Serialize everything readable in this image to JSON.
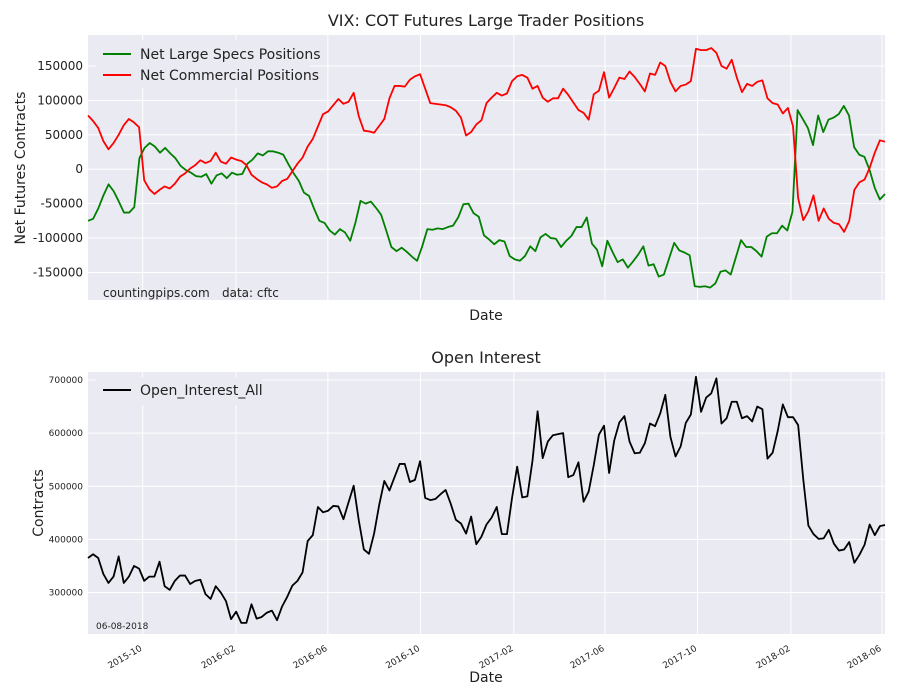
{
  "chart_data": [
    {
      "type": "line",
      "title": "VIX: COT Futures Large Trader Positions",
      "xlabel": "Date",
      "ylabel": "Net Futures Contracts",
      "ylim": [
        -190000,
        195000
      ],
      "yticks": [
        -150000,
        -100000,
        -50000,
        0,
        50000,
        100000,
        150000
      ],
      "x_start": "2015-07-21",
      "x_end": "2018-06-05",
      "source_note": "countingpips.com",
      "data_note": "data: cftc",
      "series": [
        {
          "name": "Net Large Specs Positions",
          "color": "#008000",
          "values": [
            -75000,
            -72000,
            -57000,
            -38000,
            -22000,
            -32000,
            -47000,
            -63000,
            -63000,
            -55000,
            16000,
            31000,
            38000,
            33000,
            24000,
            31000,
            23000,
            16000,
            5000,
            -1000,
            -5000,
            -10000,
            -11000,
            -7000,
            -21000,
            -9000,
            -6000,
            -13000,
            -5000,
            -8000,
            -7000,
            8000,
            14000,
            23000,
            20000,
            26000,
            26000,
            24000,
            21000,
            7000,
            -6000,
            -17000,
            -34000,
            -39000,
            -58000,
            -75000,
            -78000,
            -89000,
            -95000,
            -87000,
            -92000,
            -104000,
            -78000,
            -46000,
            -50000,
            -47000,
            -56000,
            -66000,
            -89000,
            -113000,
            -119000,
            -114000,
            -120000,
            -127000,
            -133000,
            -112000,
            -87000,
            -88000,
            -86000,
            -87000,
            -84000,
            -82000,
            -70000,
            -51000,
            -50000,
            -64000,
            -69000,
            -96000,
            -102000,
            -109000,
            -103000,
            -105000,
            -126000,
            -131000,
            -133000,
            -126000,
            -112000,
            -119000,
            -99000,
            -94000,
            -100000,
            -101000,
            -113000,
            -104000,
            -97000,
            -84000,
            -84000,
            -70000,
            -108000,
            -117000,
            -141000,
            -104000,
            -120000,
            -135000,
            -131000,
            -143000,
            -134000,
            -124000,
            -112000,
            -140000,
            -138000,
            -156000,
            -153000,
            -130000,
            -107000,
            -118000,
            -121000,
            -125000,
            -170000,
            -171000,
            -170000,
            -172000,
            -166000,
            -149000,
            -147000,
            -153000,
            -128000,
            -103000,
            -113000,
            -113000,
            -119000,
            -127000,
            -98000,
            -93000,
            -93000,
            -82000,
            -89000,
            -62000,
            86000,
            73000,
            60000,
            35000,
            78000,
            54000,
            72000,
            75000,
            80000,
            92000,
            78000,
            32000,
            21000,
            18000,
            -1000,
            -27000,
            -44000,
            -36000
          ]
        },
        {
          "name": "Net Commercial Positions",
          "color": "#ff0000",
          "values": [
            78000,
            70000,
            60000,
            41000,
            29000,
            38000,
            50000,
            64000,
            73000,
            68000,
            61000,
            -16000,
            -29000,
            -36000,
            -30000,
            -25000,
            -28000,
            -21000,
            -11000,
            -6000,
            1000,
            6000,
            13000,
            9000,
            12000,
            24000,
            11000,
            8000,
            17000,
            14000,
            12000,
            6000,
            -8000,
            -14000,
            -19000,
            -22000,
            -27000,
            -25000,
            -17000,
            -14000,
            -3000,
            8000,
            17000,
            33000,
            44000,
            62000,
            80000,
            84000,
            93000,
            102000,
            95000,
            98000,
            111000,
            77000,
            56000,
            55000,
            53000,
            63000,
            73000,
            103000,
            121000,
            121000,
            120000,
            130000,
            135000,
            138000,
            117000,
            96000,
            95000,
            94000,
            93000,
            90000,
            85000,
            75000,
            49000,
            54000,
            65000,
            71000,
            96000,
            104000,
            111000,
            107000,
            110000,
            128000,
            135000,
            137000,
            133000,
            117000,
            121000,
            104000,
            98000,
            103000,
            103000,
            117000,
            108000,
            97000,
            86000,
            82000,
            72000,
            109000,
            114000,
            141000,
            104000,
            118000,
            133000,
            131000,
            142000,
            134000,
            124000,
            113000,
            139000,
            137000,
            155000,
            150000,
            127000,
            113000,
            121000,
            123000,
            128000,
            175000,
            173000,
            173000,
            176000,
            169000,
            150000,
            146000,
            159000,
            133000,
            112000,
            124000,
            121000,
            127000,
            129000,
            103000,
            96000,
            94000,
            81000,
            89000,
            62000,
            -42000,
            -74000,
            -61000,
            -38000,
            -75000,
            -57000,
            -72000,
            -78000,
            -80000,
            -91000,
            -75000,
            -30000,
            -19000,
            -15000,
            2000,
            24000,
            42000,
            40000
          ]
        }
      ]
    },
    {
      "type": "line",
      "title": "Open Interest",
      "xlabel": "Date",
      "ylabel": "Contracts",
      "ylim": [
        222000,
        715000
      ],
      "yticks": [
        300000,
        400000,
        500000,
        600000,
        700000
      ],
      "xticks": [
        "2015-10",
        "2016-02",
        "2016-06",
        "2016-10",
        "2017-02",
        "2017-06",
        "2017-10",
        "2018-02",
        "2018-06"
      ],
      "date_note": "06-08-2018",
      "series": [
        {
          "name": "Open_Interest_All",
          "color": "#000000",
          "values": [
            365000,
            372000,
            365000,
            335000,
            318000,
            330000,
            368000,
            318000,
            330000,
            350000,
            345000,
            322000,
            330000,
            330000,
            358000,
            312000,
            305000,
            322000,
            332000,
            332000,
            316000,
            322000,
            324000,
            297000,
            288000,
            312000,
            300000,
            284000,
            250000,
            264000,
            243000,
            243000,
            278000,
            251000,
            254000,
            262000,
            266000,
            248000,
            274000,
            292000,
            313000,
            322000,
            338000,
            397000,
            408000,
            461000,
            451000,
            454000,
            463000,
            462000,
            438000,
            470000,
            501000,
            436000,
            381000,
            373000,
            411000,
            465000,
            510000,
            492000,
            517000,
            542000,
            542000,
            508000,
            512000,
            547000,
            478000,
            474000,
            476000,
            485000,
            493000,
            467000,
            437000,
            430000,
            411000,
            443000,
            391000,
            405000,
            428000,
            441000,
            461000,
            410000,
            410000,
            478000,
            537000,
            479000,
            481000,
            548000,
            641000,
            553000,
            584000,
            596000,
            598000,
            600000,
            517000,
            521000,
            545000,
            471000,
            490000,
            540000,
            597000,
            614000,
            525000,
            586000,
            620000,
            632000,
            584000,
            562000,
            563000,
            581000,
            618000,
            613000,
            637000,
            672000,
            593000,
            556000,
            575000,
            619000,
            635000,
            706000,
            640000,
            667000,
            675000,
            703000,
            618000,
            628000,
            659000,
            659000,
            628000,
            632000,
            622000,
            650000,
            645000,
            552000,
            563000,
            604000,
            654000,
            630000,
            630000,
            615000,
            513000,
            426000,
            410000,
            401000,
            402000,
            418000,
            392000,
            379000,
            381000,
            395000,
            356000,
            371000,
            390000,
            428000,
            408000,
            425000,
            427000
          ]
        }
      ]
    }
  ]
}
